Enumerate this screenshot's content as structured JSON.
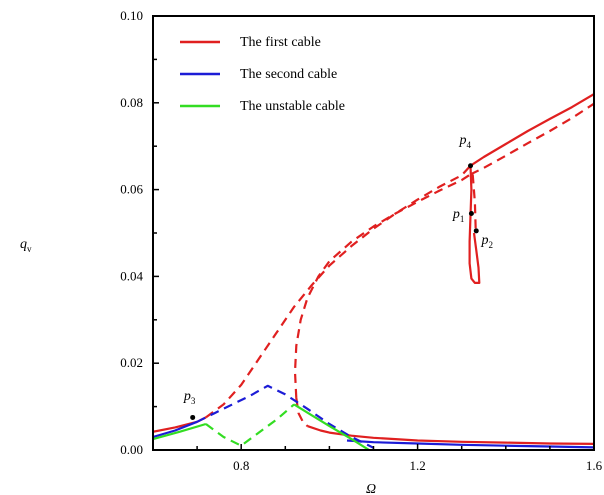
{
  "chart_data": {
    "type": "line",
    "title": "",
    "xlabel": "Ω",
    "ylabel_main": "q",
    "ylabel_sub": "v",
    "xlim": [
      0.6,
      1.6
    ],
    "ylim": [
      0.0,
      0.1
    ],
    "xticks": [
      0.8,
      1.2,
      1.6
    ],
    "xtick_labels": [
      "0.8",
      "1.2",
      "1.6"
    ],
    "yticks": [
      0.0,
      0.02,
      0.04,
      0.06,
      0.08,
      0.1
    ],
    "ytick_labels": [
      "0.00",
      "0.02",
      "0.04",
      "0.06",
      "0.08",
      "0.10"
    ],
    "grid": false,
    "legend_position": "top-left",
    "legend": [
      {
        "label": "The  first  cable",
        "color": "#e02020"
      },
      {
        "label": "The  second  cable",
        "color": "#1c1cd6"
      },
      {
        "label": "The  unstable  cable",
        "color": "#33dd22"
      }
    ],
    "series": [
      {
        "name": "The  first  cable",
        "color": "#e02020",
        "style": "solid",
        "x": [
          0.6,
          0.65,
          0.7,
          0.72
        ],
        "y": [
          0.0042,
          0.0052,
          0.0065,
          0.0075
        ]
      },
      {
        "name": "The  first  cable",
        "color": "#e02020",
        "style": "dashed",
        "x": [
          0.72,
          0.76,
          0.8,
          0.84,
          0.88,
          0.92,
          0.96,
          1.0,
          1.05,
          1.1,
          1.15,
          1.2,
          1.25,
          1.3,
          1.32
        ],
        "y": [
          0.0075,
          0.0105,
          0.015,
          0.021,
          0.027,
          0.033,
          0.038,
          0.0425,
          0.047,
          0.051,
          0.0545,
          0.0577,
          0.0607,
          0.0633,
          0.0655
        ]
      },
      {
        "name": "The  first  cable",
        "color": "#e02020",
        "style": "dashed",
        "x": [
          0.925,
          0.922,
          0.925,
          0.935,
          0.95,
          0.975,
          1.0,
          1.05,
          1.1,
          1.15,
          1.2,
          1.25,
          1.3,
          1.32
        ],
        "y": [
          0.012,
          0.018,
          0.024,
          0.03,
          0.035,
          0.04,
          0.0435,
          0.048,
          0.0515,
          0.0545,
          0.0572,
          0.0598,
          0.0622,
          0.0635
        ]
      },
      {
        "name": "The  first  cable",
        "color": "#e02020",
        "style": "dashed",
        "x": [
          0.925,
          0.93,
          0.94,
          0.95
        ],
        "y": [
          0.012,
          0.0085,
          0.0065,
          0.0055
        ]
      },
      {
        "name": "The  first  cable",
        "color": "#e02020",
        "style": "solid",
        "x": [
          1.32,
          1.35,
          1.4,
          1.45,
          1.5,
          1.55,
          1.6
        ],
        "y": [
          0.0655,
          0.0675,
          0.0705,
          0.0735,
          0.0763,
          0.079,
          0.082
        ]
      },
      {
        "name": "The  first  cable",
        "color": "#e02020",
        "style": "dashed",
        "x": [
          1.32,
          1.35,
          1.4,
          1.45,
          1.5,
          1.55,
          1.6
        ],
        "y": [
          0.0635,
          0.065,
          0.0678,
          0.0707,
          0.0735,
          0.0765,
          0.0798
        ]
      },
      {
        "name": "The  first  cable",
        "color": "#e02020",
        "style": "solid",
        "x": [
          1.32,
          1.322,
          1.32,
          1.318,
          1.318,
          1.322,
          1.33,
          1.34,
          1.338,
          1.333,
          1.328
        ],
        "y": [
          0.0655,
          0.06,
          0.054,
          0.048,
          0.043,
          0.0395,
          0.0385,
          0.0385,
          0.042,
          0.046,
          0.05
        ]
      },
      {
        "name": "The  first  cable",
        "color": "#e02020",
        "style": "dashed",
        "x": [
          1.325,
          1.33,
          1.332
        ],
        "y": [
          0.0635,
          0.057,
          0.05
        ]
      },
      {
        "name": "The  first  cable",
        "color": "#e02020",
        "style": "solid",
        "x": [
          0.95,
          0.98,
          1.0,
          1.05,
          1.1,
          1.15,
          1.2,
          1.3,
          1.4,
          1.5,
          1.6
        ],
        "y": [
          0.0055,
          0.0045,
          0.004,
          0.0033,
          0.0028,
          0.0025,
          0.0022,
          0.0019,
          0.0017,
          0.0015,
          0.0014
        ]
      },
      {
        "name": "The  second  cable",
        "color": "#1c1cd6",
        "style": "solid",
        "x": [
          0.6,
          0.65,
          0.7
        ],
        "y": [
          0.003,
          0.0045,
          0.0065
        ]
      },
      {
        "name": "The  second  cable",
        "color": "#1c1cd6",
        "style": "dashed",
        "x": [
          0.7,
          0.74,
          0.78,
          0.82,
          0.86,
          0.9,
          0.95,
          1.0,
          1.05,
          1.1
        ],
        "y": [
          0.0065,
          0.0085,
          0.0105,
          0.0125,
          0.0148,
          0.0128,
          0.0095,
          0.006,
          0.003,
          0.0005
        ]
      },
      {
        "name": "The  second  cable",
        "color": "#1c1cd6",
        "style": "solid",
        "x": [
          1.04,
          1.1,
          1.2,
          1.3,
          1.4,
          1.5,
          1.6
        ],
        "y": [
          0.0022,
          0.0018,
          0.0015,
          0.0012,
          0.001,
          0.0008,
          0.0006
        ]
      },
      {
        "name": "The  unstable  cable",
        "color": "#33dd22",
        "style": "solid",
        "x": [
          0.6,
          0.66,
          0.72
        ],
        "y": [
          0.0025,
          0.0042,
          0.006
        ]
      },
      {
        "name": "The  unstable  cable",
        "color": "#33dd22",
        "style": "dashed",
        "x": [
          0.72,
          0.76,
          0.8,
          0.84,
          0.88,
          0.92
        ],
        "y": [
          0.006,
          0.003,
          0.001,
          0.004,
          0.007,
          0.0105
        ]
      },
      {
        "name": "The  unstable  cable",
        "color": "#33dd22",
        "style": "solid",
        "x": [
          0.92,
          0.96,
          1.0,
          1.05,
          1.09
        ],
        "y": [
          0.0105,
          0.008,
          0.0055,
          0.0025,
          0.0
        ]
      }
    ],
    "annotations": [
      {
        "label": "p",
        "sub": "4",
        "x": 1.32,
        "y": 0.0655,
        "label_x": 1.295,
        "label_y": 0.0705
      },
      {
        "label": "p",
        "sub": "1",
        "x": 1.322,
        "y": 0.0545,
        "label_x": 1.28,
        "label_y": 0.0535
      },
      {
        "label": "p",
        "sub": "2",
        "x": 1.333,
        "y": 0.0505,
        "label_x": 1.345,
        "label_y": 0.0475
      },
      {
        "label": "p",
        "sub": "3",
        "x": 0.69,
        "y": 0.0075,
        "label_x": 0.67,
        "label_y": 0.0115
      }
    ]
  }
}
